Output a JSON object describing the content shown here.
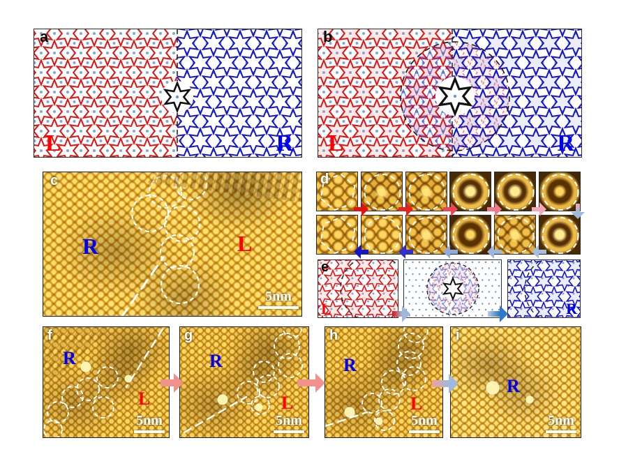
{
  "panels": {
    "a": {
      "label": "a",
      "l_label": "L",
      "r_label": "R"
    },
    "b": {
      "label": "b",
      "l_label": "L",
      "r_label": "R"
    },
    "c": {
      "label": "c",
      "r_label": "R",
      "l_label": "L",
      "scalebar": "5nm"
    },
    "d": {
      "label": "d"
    },
    "e": {
      "label": "e",
      "l_label": "L",
      "r_label": "R"
    },
    "f": {
      "label": "f",
      "r_label": "R",
      "l_label": "L",
      "scalebar": "5nm"
    },
    "g": {
      "label": "g",
      "r_label": "R",
      "l_label": "L",
      "scalebar": "5nm"
    },
    "h": {
      "label": "h",
      "r_label": "R",
      "l_label": "L",
      "scalebar": "5nm"
    },
    "i": {
      "label": "i",
      "r_label": "R",
      "scalebar": "5nm"
    }
  },
  "colors": {
    "left_domain_red": "#e11212",
    "right_domain_blue": "#1414cc",
    "label_red": "#ff0000",
    "label_blue": "#0000ee",
    "lattice_dot_blue": "#6b9ac8",
    "boundary_white": "#ffffff",
    "black_star": "#111111"
  },
  "d_cells": {
    "row1_types": [
      "cluster",
      "mid",
      "mid",
      "ring",
      "ring",
      "ring2"
    ],
    "row2_types": [
      "cluster",
      "cluster",
      "mid",
      "ring2",
      "mid",
      "ring"
    ],
    "row1_outlines": [
      "hexagon",
      "circle",
      "circle",
      "circle",
      "circle",
      "circle"
    ],
    "row2_outlines": [
      "hexagon",
      "circle",
      "circle",
      "circle",
      "circle",
      "circle"
    ]
  },
  "arrows": {
    "d_top_colors": [
      "#e41111",
      "#e62222",
      "#ec4553",
      "#f07a8a",
      "#f5a8b6"
    ],
    "d_down_gradient": [
      "#f5a8b6",
      "#9fb9dc"
    ],
    "d_bottom_colors": [
      "#1414c8",
      "#3030cc",
      "#93abd8",
      "#9db6da",
      "#a8bede"
    ],
    "e_first_gradient": [
      "#e01010",
      "#9fb9dc"
    ],
    "e_second_gradient": [
      "#b8cce8",
      "#2f7ac8"
    ],
    "f_to_g": "#f0928c",
    "g_to_h": "#f0928c",
    "h_to_i_gradient": [
      "#f2a0a0",
      "#9fb9dc"
    ]
  }
}
